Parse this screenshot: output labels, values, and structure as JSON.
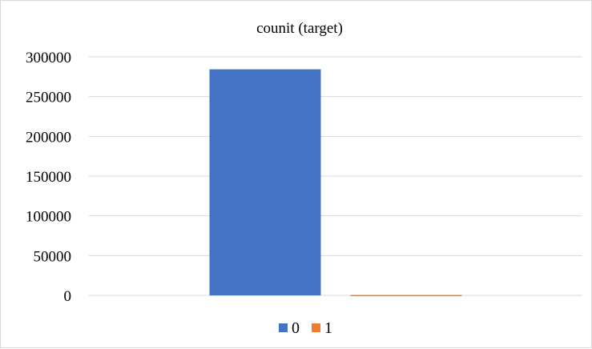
{
  "chart_data": {
    "type": "bar",
    "title": "counit (target)",
    "categories": [
      ""
    ],
    "series": [
      {
        "name": "0",
        "values": [
          284315
        ],
        "color": "#4472C4"
      },
      {
        "name": "1",
        "values": [
          492
        ],
        "color": "#ED7D31"
      }
    ],
    "ylim": [
      0,
      300000
    ],
    "yticks": [
      "0",
      "50000",
      "100000",
      "150000",
      "200000",
      "250000",
      "300000"
    ],
    "grid": true,
    "legend": "bottom"
  }
}
